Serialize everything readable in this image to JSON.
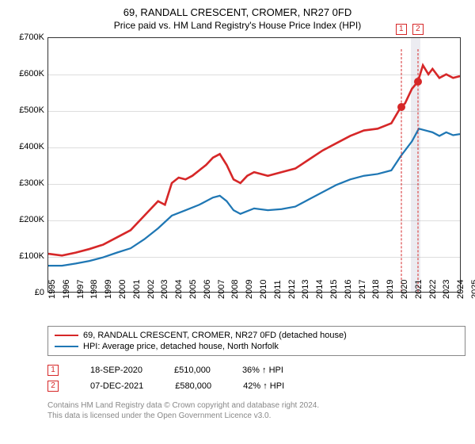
{
  "title": "69, RANDALL CRESCENT, CROMER, NR27 0FD",
  "subtitle": "Price paid vs. HM Land Registry's House Price Index (HPI)",
  "chart": {
    "type": "line",
    "ylim": [
      0,
      700000
    ],
    "ytick_step": 100000,
    "yticks": [
      "£0",
      "£100K",
      "£200K",
      "£300K",
      "£400K",
      "£500K",
      "£600K",
      "£700K"
    ],
    "xlim": [
      1995,
      2025
    ],
    "xticks": [
      1995,
      1996,
      1997,
      1998,
      1999,
      2000,
      2001,
      2002,
      2003,
      2004,
      2005,
      2006,
      2007,
      2008,
      2009,
      2010,
      2011,
      2012,
      2013,
      2014,
      2015,
      2016,
      2017,
      2018,
      2019,
      2020,
      2021,
      2022,
      2023,
      2024,
      2025
    ],
    "grid_color": "#dddddd",
    "border_color": "#333333",
    "background_color": "#ffffff",
    "series": [
      {
        "name": "property",
        "label": "69, RANDALL CRESCENT, CROMER, NR27 0FD (detached house)",
        "color": "#d62728",
        "width": 1.4,
        "points": [
          [
            1995,
            105000
          ],
          [
            1996,
            100000
          ],
          [
            1997,
            108000
          ],
          [
            1998,
            118000
          ],
          [
            1999,
            130000
          ],
          [
            2000,
            150000
          ],
          [
            2001,
            170000
          ],
          [
            2002,
            210000
          ],
          [
            2003,
            250000
          ],
          [
            2003.5,
            240000
          ],
          [
            2004,
            300000
          ],
          [
            2004.5,
            315000
          ],
          [
            2005,
            310000
          ],
          [
            2005.5,
            320000
          ],
          [
            2006,
            335000
          ],
          [
            2006.5,
            350000
          ],
          [
            2007,
            370000
          ],
          [
            2007.5,
            380000
          ],
          [
            2008,
            350000
          ],
          [
            2008.5,
            310000
          ],
          [
            2009,
            300000
          ],
          [
            2009.5,
            320000
          ],
          [
            2010,
            330000
          ],
          [
            2011,
            320000
          ],
          [
            2012,
            330000
          ],
          [
            2013,
            340000
          ],
          [
            2014,
            365000
          ],
          [
            2015,
            390000
          ],
          [
            2016,
            410000
          ],
          [
            2017,
            430000
          ],
          [
            2018,
            445000
          ],
          [
            2019,
            450000
          ],
          [
            2020,
            465000
          ],
          [
            2020.7,
            510000
          ],
          [
            2021,
            520000
          ],
          [
            2021.5,
            560000
          ],
          [
            2021.94,
            580000
          ],
          [
            2022.3,
            625000
          ],
          [
            2022.7,
            600000
          ],
          [
            2023,
            615000
          ],
          [
            2023.5,
            590000
          ],
          [
            2024,
            600000
          ],
          [
            2024.5,
            590000
          ],
          [
            2025,
            595000
          ]
        ]
      },
      {
        "name": "hpi",
        "label": "HPI: Average price, detached house, North Norfolk",
        "color": "#1f77b4",
        "width": 1.2,
        "points": [
          [
            1995,
            72000
          ],
          [
            1996,
            72000
          ],
          [
            1997,
            78000
          ],
          [
            1998,
            85000
          ],
          [
            1999,
            95000
          ],
          [
            2000,
            108000
          ],
          [
            2001,
            120000
          ],
          [
            2002,
            145000
          ],
          [
            2003,
            175000
          ],
          [
            2004,
            210000
          ],
          [
            2005,
            225000
          ],
          [
            2006,
            240000
          ],
          [
            2007,
            260000
          ],
          [
            2007.5,
            265000
          ],
          [
            2008,
            250000
          ],
          [
            2008.5,
            225000
          ],
          [
            2009,
            215000
          ],
          [
            2010,
            230000
          ],
          [
            2011,
            225000
          ],
          [
            2012,
            228000
          ],
          [
            2013,
            235000
          ],
          [
            2014,
            255000
          ],
          [
            2015,
            275000
          ],
          [
            2016,
            295000
          ],
          [
            2017,
            310000
          ],
          [
            2018,
            320000
          ],
          [
            2019,
            325000
          ],
          [
            2020,
            335000
          ],
          [
            2020.7,
            375000
          ],
          [
            2021,
            390000
          ],
          [
            2021.5,
            415000
          ],
          [
            2022,
            450000
          ],
          [
            2022.5,
            445000
          ],
          [
            2023,
            440000
          ],
          [
            2023.5,
            430000
          ],
          [
            2024,
            440000
          ],
          [
            2024.5,
            432000
          ],
          [
            2025,
            435000
          ]
        ]
      }
    ],
    "markers": [
      {
        "index": "1",
        "x": 2020.72,
        "color": "#d62728",
        "dot_y": 510000
      },
      {
        "index": "2",
        "x": 2021.94,
        "color": "#d62728",
        "dot_y": 580000
      }
    ],
    "hpi_shade": {
      "from": 2021.4,
      "to": 2022.1
    }
  },
  "sales": [
    {
      "index": "1",
      "date": "18-SEP-2020",
      "price": "£510,000",
      "delta": "36% ↑ HPI",
      "color": "#d62728"
    },
    {
      "index": "2",
      "date": "07-DEC-2021",
      "price": "£580,000",
      "delta": "42% ↑ HPI",
      "color": "#d62728"
    }
  ],
  "credit_line1": "Contains HM Land Registry data © Crown copyright and database right 2024.",
  "credit_line2": "This data is licensed under the Open Government Licence v3.0."
}
